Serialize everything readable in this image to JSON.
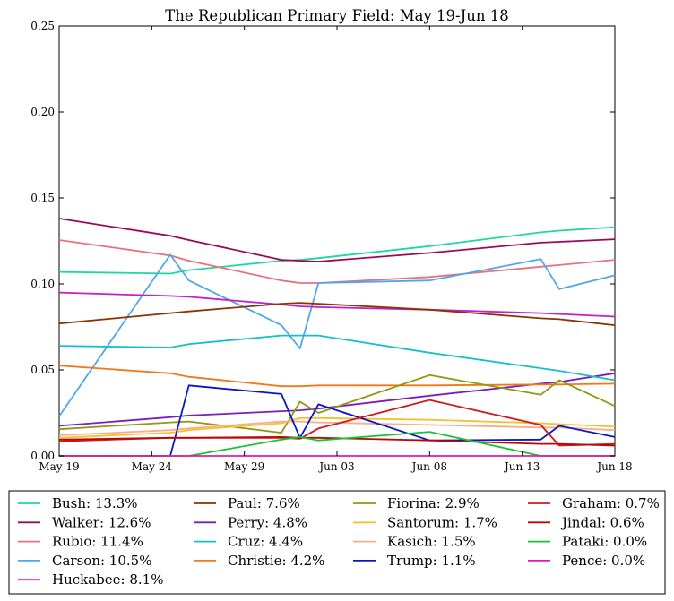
{
  "chart_data": {
    "type": "line",
    "title": "The Republican Primary Field: May 19-Jun 18",
    "xlim": [
      "May 19",
      "Jun 18"
    ],
    "ylim": [
      0,
      0.25
    ],
    "xticks": [
      "May 19",
      "May 24",
      "May 29",
      "Jun 03",
      "Jun 08",
      "Jun 13",
      "Jun 18"
    ],
    "yticks": [
      "0.00",
      "0.05",
      "0.10",
      "0.15",
      "0.20",
      "0.25"
    ],
    "grid": false,
    "legend": "bottom",
    "x": [
      "May 19",
      "May 25",
      "May 26",
      "May 31",
      "Jun 01",
      "Jun 02",
      "Jun 08",
      "Jun 14",
      "Jun 15",
      "Jun 18"
    ],
    "series": [
      {
        "name": "Bush: 13.3%",
        "color": "#1fd7a0",
        "values": [
          0.107,
          0.106,
          0.108,
          0.1135,
          0.114,
          0.115,
          0.122,
          0.13,
          0.131,
          0.133
        ]
      },
      {
        "name": "Walker: 12.6%",
        "color": "#9a0a5c",
        "values": [
          0.138,
          0.128,
          0.1255,
          0.114,
          0.1135,
          0.113,
          0.118,
          0.124,
          0.1245,
          0.126
        ]
      },
      {
        "name": "Rubio: 11.4%",
        "color": "#e9707e",
        "values": [
          0.1255,
          0.1165,
          0.1135,
          0.102,
          0.1005,
          0.1005,
          0.104,
          0.11,
          0.111,
          0.114
        ]
      },
      {
        "name": "Carson: 10.5%",
        "color": "#4ea7ee",
        "values": [
          0.023,
          0.117,
          0.102,
          0.076,
          0.0625,
          0.1005,
          0.102,
          0.1145,
          0.097,
          0.105
        ]
      },
      {
        "name": "Huckabee: 8.1%",
        "color": "#c31fce",
        "values": [
          0.095,
          0.093,
          0.0925,
          0.088,
          0.087,
          0.0865,
          0.085,
          0.083,
          0.0825,
          0.081
        ]
      },
      {
        "name": "Paul: 7.6%",
        "color": "#8c3300",
        "values": [
          0.077,
          0.083,
          0.084,
          0.0885,
          0.089,
          0.0885,
          0.085,
          0.08,
          0.0795,
          0.076
        ]
      },
      {
        "name": "Perry: 4.8%",
        "color": "#781ec2",
        "values": [
          0.0175,
          0.0225,
          0.0235,
          0.026,
          0.0265,
          0.0275,
          0.035,
          0.042,
          0.043,
          0.048
        ]
      },
      {
        "name": "Cruz: 4.4%",
        "color": "#17bfcb",
        "values": [
          0.064,
          0.063,
          0.065,
          0.07,
          0.07,
          0.07,
          0.06,
          0.051,
          0.0495,
          0.044
        ]
      },
      {
        "name": "Christie: 4.2%",
        "color": "#f27918",
        "values": [
          0.0525,
          0.048,
          0.046,
          0.0405,
          0.0405,
          0.041,
          0.041,
          0.0415,
          0.0415,
          0.042
        ]
      },
      {
        "name": "Fiorina: 2.9%",
        "color": "#8f9912",
        "values": [
          0.0155,
          0.0195,
          0.02,
          0.0135,
          0.0315,
          0.025,
          0.047,
          0.0355,
          0.044,
          0.029
        ]
      },
      {
        "name": "Santorum: 1.7%",
        "color": "#f3c22c",
        "values": [
          0.0105,
          0.0135,
          0.015,
          0.019,
          0.022,
          0.022,
          0.021,
          0.019,
          0.0185,
          0.017
        ]
      },
      {
        "name": "Kasich: 1.5%",
        "color": "#f8ad8f",
        "values": [
          0.012,
          0.015,
          0.016,
          0.02,
          0.02,
          0.0195,
          0.018,
          0.0165,
          0.0165,
          0.015
        ]
      },
      {
        "name": "Trump: 1.1%",
        "color": "#0a17c6",
        "values": [
          0.0,
          0.0,
          0.041,
          0.036,
          0.0105,
          0.03,
          0.009,
          0.0095,
          0.0175,
          0.011
        ]
      },
      {
        "name": "Graham: 0.7%",
        "color": "#d11a1a",
        "values": [
          0.0085,
          0.0105,
          0.0105,
          0.0105,
          0.01,
          0.016,
          0.0325,
          0.018,
          0.006,
          0.007
        ]
      },
      {
        "name": "Jindal: 0.6%",
        "color": "#bc0707",
        "values": [
          0.0095,
          0.0105,
          0.0105,
          0.011,
          0.0105,
          0.0105,
          0.009,
          0.007,
          0.007,
          0.006
        ]
      },
      {
        "name": "Pataki: 0.0%",
        "color": "#18c435",
        "values": [
          0.0,
          0.0,
          0.0,
          0.0095,
          0.011,
          0.009,
          0.014,
          0.0,
          0.0,
          0.0
        ]
      },
      {
        "name": "Pence: 0.0%",
        "color": "#e41ba6",
        "values": [
          0.0,
          0.0,
          0.0,
          0.0,
          0.0,
          0.0,
          0.0,
          0.0,
          0.0,
          0.0
        ]
      }
    ]
  }
}
